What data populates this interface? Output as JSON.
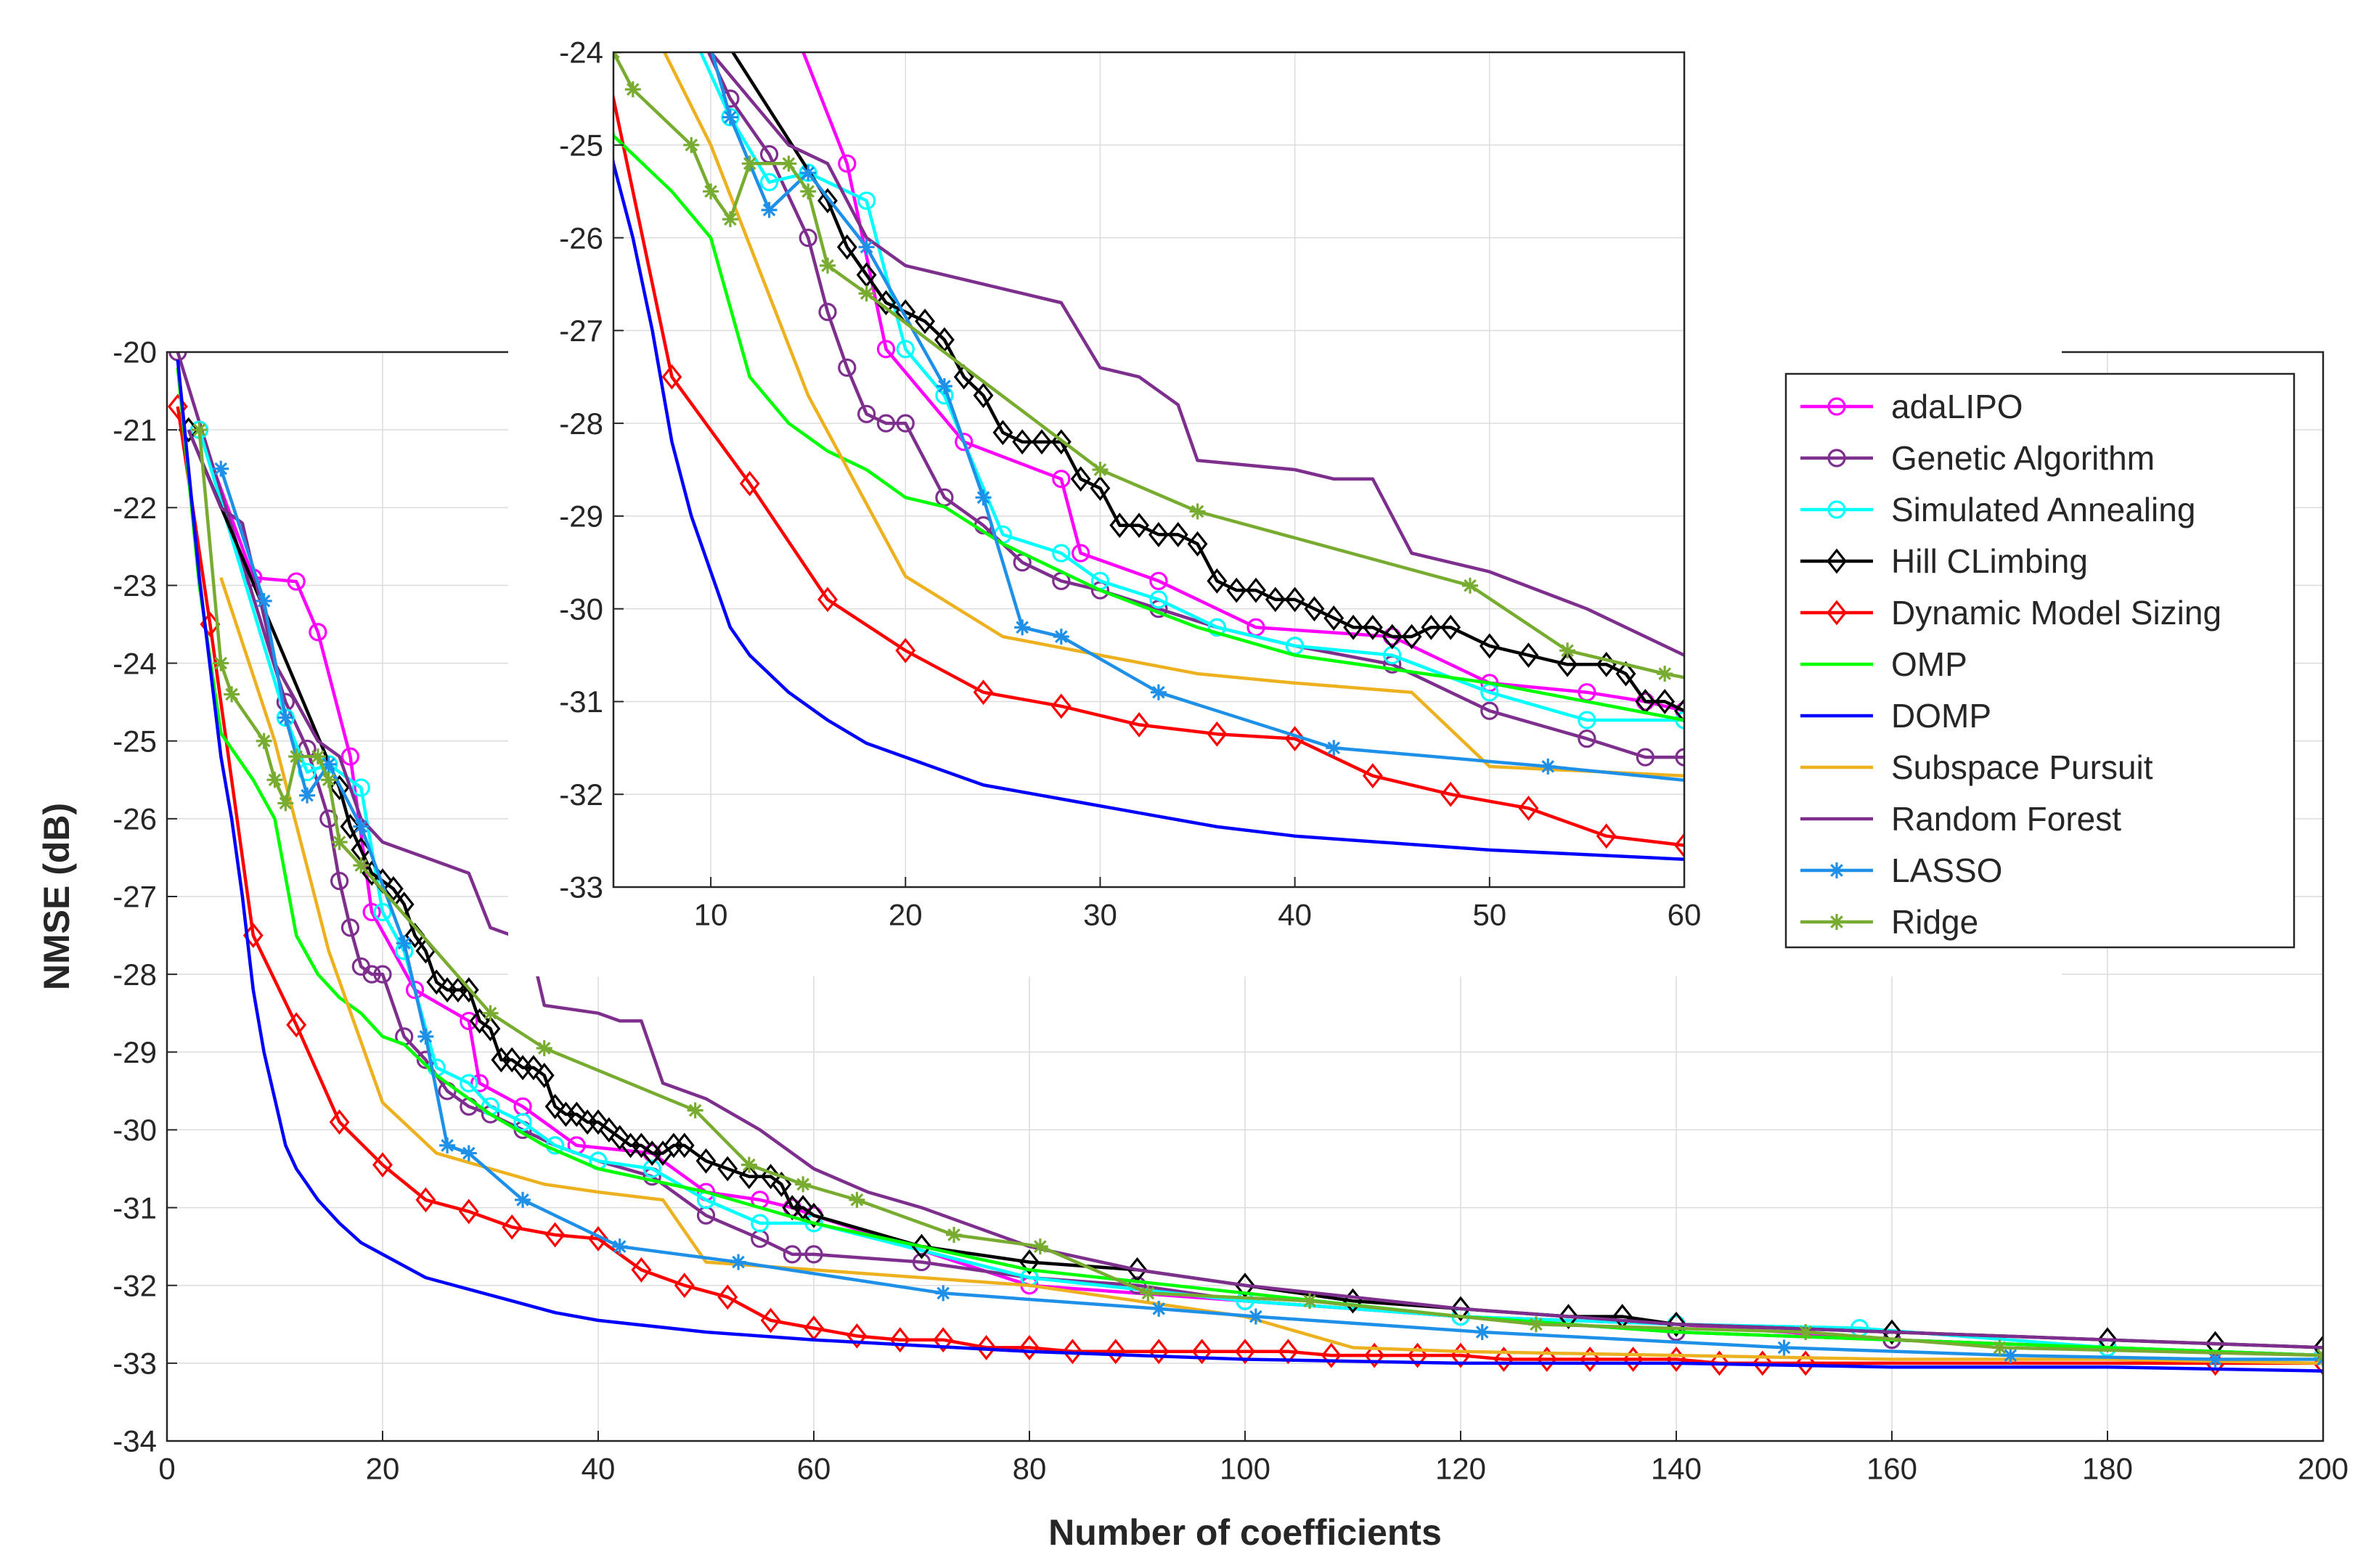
{
  "chart_data": [
    {
      "type": "line",
      "panel": "main",
      "title": "",
      "xlabel": "Number of coefficients",
      "ylabel": "NMSE (dB)",
      "xlim": [
        0,
        200
      ],
      "ylim": [
        -34,
        -20
      ],
      "xticks": [
        0,
        20,
        40,
        60,
        80,
        100,
        120,
        140,
        160,
        180,
        200
      ],
      "yticks": [
        -34,
        -33,
        -32,
        -31,
        -30,
        -29,
        -28,
        -27,
        -26,
        -25,
        -24,
        -23,
        -22,
        -21,
        -20
      ],
      "grid": true,
      "legend_position": "right",
      "series": [
        {
          "name": "adaLIPO",
          "color": "#ff00ff",
          "marker": "circle",
          "x": [
            3,
            8,
            12,
            14,
            17,
            19,
            23,
            28,
            29,
            33,
            38,
            45,
            50,
            55,
            58,
            60,
            80,
            100,
            120,
            140,
            160,
            180,
            200
          ],
          "y": [
            -21.0,
            -22.9,
            -22.95,
            -23.6,
            -25.2,
            -27.2,
            -28.2,
            -28.6,
            -29.4,
            -29.7,
            -30.2,
            -30.3,
            -30.8,
            -30.9,
            -31.0,
            -31.1,
            -32.0,
            -32.2,
            -32.4,
            -32.5,
            -32.7,
            -32.8,
            -32.9
          ]
        },
        {
          "name": "Genetic Algorithm",
          "color": "#7e2f8e",
          "marker": "circle",
          "x": [
            1,
            11,
            13,
            15,
            16,
            17,
            18,
            19,
            20,
            22,
            24,
            26,
            28,
            30,
            33,
            36,
            40,
            45,
            50,
            55,
            58,
            60,
            70,
            80,
            90,
            100,
            120,
            140,
            160,
            180,
            200
          ],
          "y": [
            -20.0,
            -24.5,
            -25.1,
            -26.0,
            -26.8,
            -27.4,
            -27.9,
            -28.0,
            -28.0,
            -28.8,
            -29.1,
            -29.5,
            -29.7,
            -29.8,
            -30.0,
            -30.2,
            -30.4,
            -30.6,
            -31.1,
            -31.4,
            -31.6,
            -31.6,
            -31.7,
            -31.9,
            -32.0,
            -32.2,
            -32.4,
            -32.6,
            -32.7,
            -32.8,
            -32.9
          ]
        },
        {
          "name": "Simulated Annealing",
          "color": "#00ffff",
          "marker": "circle",
          "x": [
            3,
            11,
            13,
            15,
            18,
            20,
            22,
            25,
            28,
            30,
            33,
            36,
            40,
            45,
            50,
            55,
            60,
            80,
            100,
            120,
            140,
            157,
            180,
            200
          ],
          "y": [
            -21.0,
            -24.7,
            -25.4,
            -25.3,
            -25.6,
            -27.2,
            -27.7,
            -29.2,
            -29.4,
            -29.7,
            -29.9,
            -30.2,
            -30.4,
            -30.5,
            -30.9,
            -31.2,
            -31.2,
            -31.9,
            -32.2,
            -32.4,
            -32.5,
            -32.55,
            -32.8,
            -32.9
          ]
        },
        {
          "name": "Hill CLimbing",
          "color": "#000000",
          "marker": "diamond",
          "x": [
            2,
            16,
            17,
            18,
            19,
            20,
            21,
            22,
            23,
            24,
            25,
            26,
            27,
            28,
            29,
            30,
            31,
            32,
            33,
            34,
            35,
            36,
            37,
            38,
            39,
            40,
            41,
            42,
            43,
            44,
            45,
            46,
            47,
            48,
            50,
            52,
            54,
            56,
            57,
            58,
            59,
            60,
            70,
            80,
            90,
            100,
            110,
            120,
            130,
            135,
            140,
            160,
            180,
            190,
            200
          ],
          "y": [
            -21.0,
            -25.6,
            -26.1,
            -26.4,
            -26.7,
            -26.8,
            -26.9,
            -27.1,
            -27.5,
            -27.7,
            -28.1,
            -28.2,
            -28.2,
            -28.2,
            -28.6,
            -28.7,
            -29.1,
            -29.1,
            -29.2,
            -29.2,
            -29.3,
            -29.7,
            -29.8,
            -29.8,
            -29.9,
            -29.9,
            -30.0,
            -30.1,
            -30.2,
            -30.2,
            -30.3,
            -30.3,
            -30.2,
            -30.2,
            -30.4,
            -30.5,
            -30.6,
            -30.6,
            -30.7,
            -31.0,
            -31.0,
            -31.1,
            -31.5,
            -31.7,
            -31.8,
            -32.0,
            -32.2,
            -32.3,
            -32.4,
            -32.4,
            -32.5,
            -32.6,
            -32.7,
            -32.75,
            -32.8
          ]
        },
        {
          "name": "Dynamic Model Sizing",
          "color": "#ff0000",
          "marker": "diamond",
          "x": [
            1,
            4,
            8,
            12,
            16,
            20,
            24,
            28,
            32,
            36,
            40,
            44,
            48,
            52,
            56,
            60,
            64,
            68,
            72,
            76,
            80,
            84,
            88,
            92,
            96,
            100,
            104,
            108,
            112,
            116,
            120,
            124,
            128,
            132,
            136,
            140,
            144,
            148,
            152,
            190,
            200
          ],
          "y": [
            -20.7,
            -23.5,
            -27.5,
            -28.65,
            -29.9,
            -30.45,
            -30.9,
            -31.05,
            -31.25,
            -31.35,
            -31.4,
            -31.8,
            -32.0,
            -32.15,
            -32.45,
            -32.55,
            -32.65,
            -32.7,
            -32.7,
            -32.8,
            -32.8,
            -32.85,
            -32.85,
            -32.85,
            -32.85,
            -32.85,
            -32.85,
            -32.9,
            -32.9,
            -32.9,
            -32.9,
            -32.95,
            -32.95,
            -32.95,
            -32.95,
            -32.95,
            -33.0,
            -33.0,
            -33.0,
            -33.0,
            -33.0
          ]
        },
        {
          "name": "OMP",
          "color": "#00ff00",
          "marker": "none",
          "x": [
            1,
            3,
            5,
            8,
            10,
            12,
            14,
            16,
            18,
            20,
            22,
            25,
            30,
            35,
            40,
            50,
            60,
            80,
            100,
            120,
            140,
            160,
            180,
            200
          ],
          "y": [
            -20.2,
            -23.0,
            -24.9,
            -25.5,
            -26.0,
            -27.5,
            -28.0,
            -28.3,
            -28.5,
            -28.8,
            -28.9,
            -29.3,
            -29.8,
            -30.2,
            -30.5,
            -30.8,
            -31.2,
            -31.8,
            -32.1,
            -32.4,
            -32.6,
            -32.7,
            -32.8,
            -32.9
          ]
        },
        {
          "name": "DOMP",
          "color": "#0000ff",
          "marker": "none",
          "x": [
            1,
            3,
            5,
            6,
            7,
            8,
            9,
            10,
            11,
            12,
            13,
            14,
            16,
            18,
            20,
            24,
            28,
            32,
            36,
            40,
            50,
            60,
            80,
            100,
            120,
            140,
            160,
            180,
            200
          ],
          "y": [
            -20.1,
            -22.9,
            -25.2,
            -26.0,
            -27.0,
            -28.2,
            -29.0,
            -29.6,
            -30.2,
            -30.5,
            -30.7,
            -30.9,
            -31.2,
            -31.45,
            -31.6,
            -31.9,
            -32.05,
            -32.2,
            -32.35,
            -32.45,
            -32.6,
            -32.7,
            -32.85,
            -32.95,
            -33.0,
            -33.0,
            -33.05,
            -33.05,
            -33.1
          ]
        },
        {
          "name": "Subspace Pursuit",
          "color": "#edb120",
          "marker": "none",
          "x": [
            5,
            10,
            15,
            20,
            25,
            30,
            35,
            40,
            46,
            50,
            60,
            80,
            100,
            110,
            120,
            140,
            160,
            180,
            200
          ],
          "y": [
            -22.9,
            -25.0,
            -27.7,
            -29.65,
            -30.3,
            -30.5,
            -30.7,
            -30.8,
            -30.9,
            -31.7,
            -31.8,
            -32.0,
            -32.4,
            -32.8,
            -32.85,
            -32.9,
            -32.95,
            -32.95,
            -33.0
          ]
        },
        {
          "name": "Random Forest",
          "color": "#7e2f8e",
          "marker": "none",
          "x": [
            2,
            5,
            7,
            10,
            12,
            14,
            16,
            18,
            20,
            22,
            24,
            26,
            28,
            30,
            32,
            34,
            35,
            40,
            42,
            44,
            46,
            48,
            50,
            55,
            60,
            65,
            70,
            80,
            90,
            100,
            120,
            140,
            160,
            180,
            200
          ],
          "y": [
            -21.0,
            -22.0,
            -22.2,
            -24.0,
            -24.5,
            -25.0,
            -25.2,
            -26.0,
            -26.3,
            -26.4,
            -26.5,
            -26.6,
            -26.7,
            -27.4,
            -27.5,
            -27.8,
            -28.4,
            -28.5,
            -28.6,
            -28.6,
            -29.4,
            -29.5,
            -29.6,
            -30.0,
            -30.5,
            -30.8,
            -31.0,
            -31.5,
            -31.8,
            -32.0,
            -32.3,
            -32.5,
            -32.6,
            -32.7,
            -32.8
          ]
        },
        {
          "name": "LASSO",
          "color": "#1e90e8",
          "marker": "asterisk",
          "x": [
            5,
            9,
            11,
            13,
            15,
            18,
            22,
            24,
            26,
            28,
            33,
            42,
            53,
            72,
            92,
            101,
            122,
            150,
            171,
            190,
            200
          ],
          "y": [
            -21.5,
            -23.2,
            -24.7,
            -25.7,
            -25.3,
            -26.1,
            -27.6,
            -28.8,
            -30.2,
            -30.3,
            -30.9,
            -31.5,
            -31.7,
            -32.1,
            -32.3,
            -32.4,
            -32.6,
            -32.8,
            -32.9,
            -32.95,
            -32.95
          ]
        },
        {
          "name": "Ridge",
          "color": "#77ac30",
          "marker": "asterisk",
          "x": [
            3,
            5,
            6,
            9,
            10,
            11,
            12,
            14,
            15,
            16,
            18,
            30,
            35,
            49,
            54,
            59,
            64,
            73,
            81,
            91,
            106,
            127,
            152,
            170,
            200
          ],
          "y": [
            -21.0,
            -24.0,
            -24.4,
            -25.0,
            -25.5,
            -25.8,
            -25.2,
            -25.2,
            -25.5,
            -26.3,
            -26.6,
            -28.5,
            -28.95,
            -29.75,
            -30.45,
            -30.7,
            -30.9,
            -31.35,
            -31.5,
            -32.1,
            -32.2,
            -32.5,
            -32.6,
            -32.8,
            -32.9
          ]
        }
      ]
    },
    {
      "type": "line",
      "panel": "inset",
      "title": "",
      "xlabel": "",
      "ylabel": "",
      "xlim": [
        5,
        60
      ],
      "ylim": [
        -33,
        -24
      ],
      "xticks": [
        10,
        20,
        30,
        40,
        50,
        60
      ],
      "yticks": [
        -33,
        -32,
        -31,
        -30,
        -29,
        -28,
        -27,
        -26,
        -25,
        -24
      ],
      "grid": true,
      "series_source": "same series as main panel, zoomed to 5–60 coefficients"
    }
  ],
  "legend": {
    "entries": [
      "adaLIPO",
      "Genetic Algorithm",
      "Simulated Annealing",
      "Hill CLimbing",
      "Dynamic Model Sizing",
      "OMP",
      "DOMP",
      "Subspace Pursuit",
      "Random Forest",
      "LASSO",
      "Ridge"
    ]
  }
}
